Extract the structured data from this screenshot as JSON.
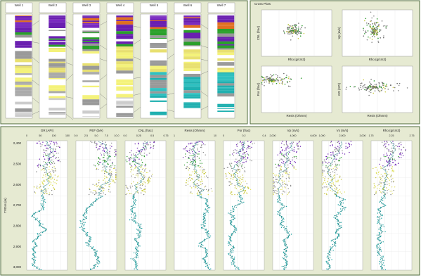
{
  "correlation_panel": {
    "wells": [
      {
        "name": "Well 1"
      },
      {
        "name": "Well 2"
      },
      {
        "name": "Well 3"
      },
      {
        "name": "Well 4"
      },
      {
        "name": "Well 5"
      },
      {
        "name": "Well 6"
      },
      {
        "name": "Well 7"
      }
    ]
  },
  "crossplot_panel": {
    "title": "Cross Plots",
    "plots": [
      {
        "x_label": "Rho (g/cm3)",
        "y_label": "CNL (frac)"
      },
      {
        "x_label": "Rho (g/cm3)",
        "y_label": "Vp (m/s)"
      },
      {
        "x_label": "Resis (Ohmm)",
        "y_label": "Por (frac)"
      },
      {
        "x_label": "Resis (Ohmm)",
        "y_label": "GR (API)"
      }
    ]
  },
  "log_panel": {
    "depth_label": "TVDss (m)",
    "depth_ticks": [
      "2,400",
      "2,500",
      "2,600",
      "2,700",
      "2,800",
      "2,900",
      "3,000"
    ],
    "tracks": [
      {
        "name": "GR (API)",
        "ticks": [
          "0",
          "50",
          "100",
          "150"
        ]
      },
      {
        "name": "PEF (b/e)",
        "ticks": [
          "0.0",
          "2.5",
          "5.0",
          "7.5",
          "10.0"
        ]
      },
      {
        "name": "CNL (frac)",
        "ticks": [
          "0.0",
          "0.25",
          "0.5",
          "0.75"
        ]
      },
      {
        "name": "Resis (Ohmm)",
        "ticks": [
          "1",
          "10"
        ]
      },
      {
        "name": "Por (frac)",
        "ticks": [
          "0",
          "0.2",
          "0.4"
        ]
      },
      {
        "name": "Vp (m/s)",
        "ticks": [
          "2,000",
          "4,000",
          "6,000"
        ]
      },
      {
        "name": "Vs (m/s)",
        "ticks": [
          "1,000",
          "2,000",
          "3,000"
        ]
      },
      {
        "name": "Rho (g/cm3)",
        "ticks": [
          "1.75",
          "2.25",
          "2.75"
        ]
      }
    ]
  }
}
